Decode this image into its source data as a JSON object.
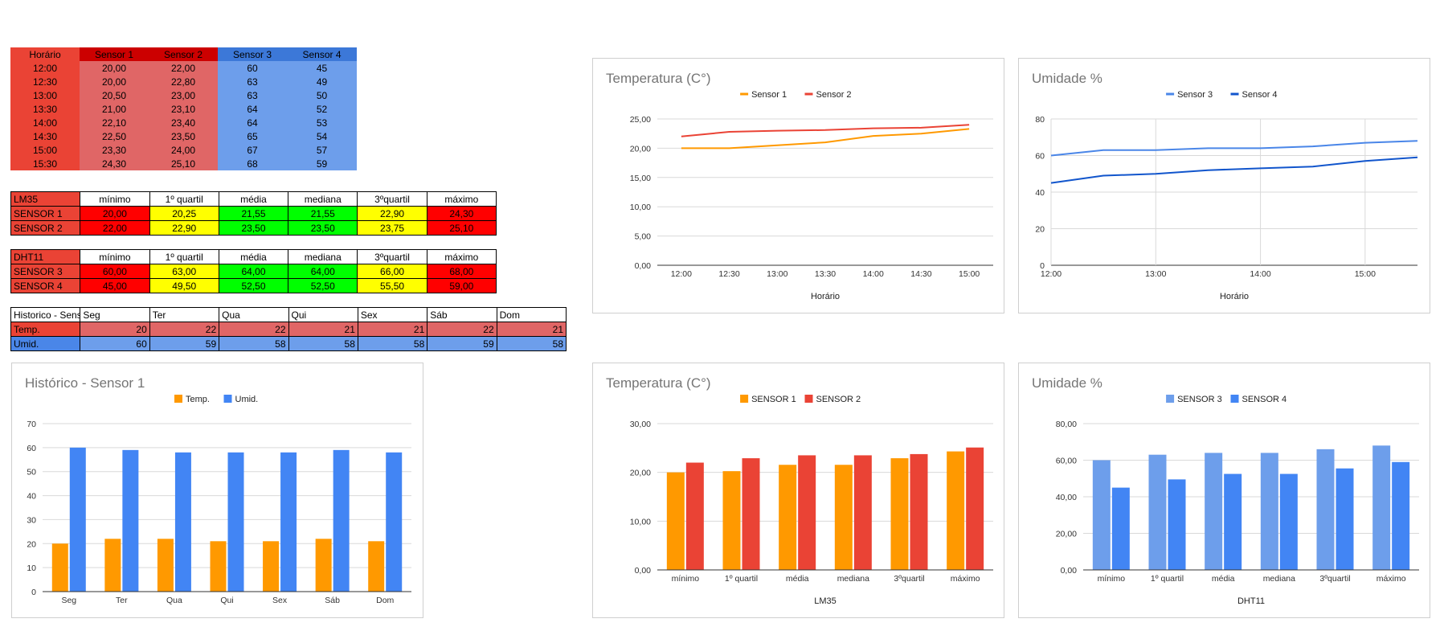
{
  "colors": {
    "red": "#ea4335",
    "red_soft": "#e06666",
    "red_dark": "#cc0000",
    "blue_soft": "#6d9eeb",
    "blue": "#3c78d8",
    "blue_bright": "#4a86e8",
    "bright_red": "#ff0000",
    "yellow": "#ffff00",
    "green": "#00ff00",
    "orange": "#ff9900",
    "dark_blue": "#1155cc"
  },
  "readings": {
    "headers": [
      "Horário",
      "Sensor 1",
      "Sensor 2",
      "Sensor 3",
      "Sensor 4"
    ],
    "rows": [
      [
        "12:00",
        "20,00",
        "22,00",
        "60",
        "45"
      ],
      [
        "12:30",
        "20,00",
        "22,80",
        "63",
        "49"
      ],
      [
        "13:00",
        "20,50",
        "23,00",
        "63",
        "50"
      ],
      [
        "13:30",
        "21,00",
        "23,10",
        "64",
        "52"
      ],
      [
        "14:00",
        "22,10",
        "23,40",
        "64",
        "53"
      ],
      [
        "14:30",
        "22,50",
        "23,50",
        "65",
        "54"
      ],
      [
        "15:00",
        "23,30",
        "24,00",
        "67",
        "57"
      ],
      [
        "15:30",
        "24,30",
        "25,10",
        "68",
        "59"
      ]
    ]
  },
  "stats_lm35": {
    "headers": [
      "LM35",
      "mínimo",
      "1º quartil",
      "média",
      "mediana",
      "3ºquartil",
      "máximo"
    ],
    "rows": [
      [
        "SENSOR 1",
        "20,00",
        "20,25",
        "21,55",
        "21,55",
        "22,90",
        "24,30"
      ],
      [
        "SENSOR 2",
        "22,00",
        "22,90",
        "23,50",
        "23,50",
        "23,75",
        "25,10"
      ]
    ]
  },
  "stats_dht11": {
    "headers": [
      "DHT11",
      "mínimo",
      "1º quartil",
      "média",
      "mediana",
      "3ºquartil",
      "máximo"
    ],
    "rows": [
      [
        "SENSOR 3",
        "60,00",
        "63,00",
        "64,00",
        "64,00",
        "66,00",
        "68,00"
      ],
      [
        "SENSOR 4",
        "45,00",
        "49,50",
        "52,50",
        "52,50",
        "55,50",
        "59,00"
      ]
    ]
  },
  "history": {
    "headers": [
      "Historico - Senso",
      "Seg",
      "Ter",
      "Qua",
      "Qui",
      "Sex",
      "Sáb",
      "Dom"
    ],
    "rows": [
      [
        "Temp.",
        "20",
        "22",
        "22",
        "21",
        "21",
        "22",
        "21"
      ],
      [
        "Umid.",
        "60",
        "59",
        "58",
        "58",
        "58",
        "59",
        "58"
      ]
    ]
  },
  "chart_data": [
    {
      "id": "temp-line",
      "type": "line",
      "title": "Temperatura (C°)",
      "xlabel": "Horário",
      "ylabel": "",
      "x": [
        "12:00",
        "12:30",
        "13:00",
        "13:30",
        "14:00",
        "14:30",
        "15:00"
      ],
      "x_ticks": [
        "12:00",
        "12:30",
        "13:00",
        "13:30",
        "14:00",
        "14:30",
        "15:00"
      ],
      "series": [
        {
          "name": "Sensor 1",
          "color": "#ff9900",
          "values": [
            20.0,
            20.0,
            20.5,
            21.0,
            22.1,
            22.5,
            23.3
          ]
        },
        {
          "name": "Sensor 2",
          "color": "#ea4335",
          "values": [
            22.0,
            22.8,
            23.0,
            23.1,
            23.4,
            23.5,
            24.0
          ]
        }
      ],
      "ylim": [
        0,
        25
      ],
      "y_ticks": [
        "0,00",
        "5,00",
        "10,00",
        "15,00",
        "20,00",
        "25,00"
      ],
      "grid": "horizontal",
      "legend": "top"
    },
    {
      "id": "humidity-line",
      "type": "line",
      "title": "Umidade %",
      "xlabel": "Horário",
      "ylabel": "",
      "x": [
        "12:00",
        "12:30",
        "13:00",
        "13:30",
        "14:00",
        "14:30",
        "15:00",
        "15:30"
      ],
      "x_ticks": [
        "12:00",
        "13:00",
        "14:00",
        "15:00"
      ],
      "series": [
        {
          "name": "Sensor 3",
          "color": "#4a86e8",
          "values": [
            60,
            63,
            63,
            64,
            64,
            65,
            67,
            68
          ]
        },
        {
          "name": "Sensor 4",
          "color": "#1155cc",
          "values": [
            45,
            49,
            50,
            52,
            53,
            54,
            57,
            59
          ]
        }
      ],
      "ylim": [
        0,
        80
      ],
      "y_ticks": [
        "0",
        "20",
        "40",
        "60",
        "80"
      ],
      "grid": "both",
      "legend": "top"
    },
    {
      "id": "history-bar",
      "type": "bar",
      "title": "Histórico - Sensor 1",
      "xlabel": "",
      "ylabel": "",
      "categories": [
        "Seg",
        "Ter",
        "Qua",
        "Qui",
        "Sex",
        "Sáb",
        "Dom"
      ],
      "series": [
        {
          "name": "Temp.",
          "color": "#ff9900",
          "values": [
            20,
            22,
            22,
            21,
            21,
            22,
            21
          ]
        },
        {
          "name": "Umid.",
          "color": "#4285f4",
          "values": [
            60,
            59,
            58,
            58,
            58,
            59,
            58
          ]
        }
      ],
      "ylim": [
        0,
        70
      ],
      "y_ticks": [
        "0",
        "10",
        "20",
        "30",
        "40",
        "50",
        "60",
        "70"
      ],
      "grid": "horizontal",
      "legend": "top"
    },
    {
      "id": "lm35-bar",
      "type": "bar",
      "title": "Temperatura (C°)",
      "xlabel": "LM35",
      "ylabel": "",
      "categories": [
        "mínimo",
        "1º quartil",
        "média",
        "mediana",
        "3ºquartil",
        "máximo"
      ],
      "series": [
        {
          "name": "SENSOR 1",
          "color": "#ff9900",
          "values": [
            20.0,
            20.25,
            21.55,
            21.55,
            22.9,
            24.3
          ]
        },
        {
          "name": "SENSOR 2",
          "color": "#ea4335",
          "values": [
            22.0,
            22.9,
            23.5,
            23.5,
            23.75,
            25.1
          ]
        }
      ],
      "ylim": [
        0,
        30
      ],
      "y_ticks": [
        "0,00",
        "10,00",
        "20,00",
        "30,00"
      ],
      "grid": "horizontal",
      "legend": "top"
    },
    {
      "id": "dht11-bar",
      "type": "bar",
      "title": "Umidade %",
      "xlabel": "DHT11",
      "ylabel": "",
      "categories": [
        "mínimo",
        "1º quartil",
        "média",
        "mediana",
        "3ºquartil",
        "máximo"
      ],
      "series": [
        {
          "name": "SENSOR 3",
          "color": "#6d9eeb",
          "values": [
            60,
            63,
            64,
            64,
            66,
            68
          ]
        },
        {
          "name": "SENSOR 4",
          "color": "#4285f4",
          "values": [
            45,
            49.5,
            52.5,
            52.5,
            55.5,
            59
          ]
        }
      ],
      "ylim": [
        0,
        80
      ],
      "y_ticks": [
        "0,00",
        "20,00",
        "40,00",
        "60,00",
        "80,00"
      ],
      "grid": "horizontal",
      "legend": "top"
    }
  ]
}
